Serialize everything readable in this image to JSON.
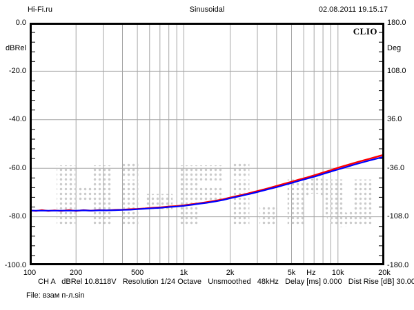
{
  "header": {
    "site": "Hi-Fi.ru",
    "title": "Sinusoidal",
    "datetime": "02.08.2011 19.15.17"
  },
  "chart_data": {
    "type": "line",
    "title": "Sinusoidal",
    "watermark": "Hi-Fi.ru",
    "logo": "CLIO",
    "grid_color": "#a6a6a6",
    "watermark_dot_color": "#cbcbcb",
    "x_axis": {
      "scale": "log",
      "min": 100,
      "max": 20000,
      "gridlines": [
        200,
        300,
        400,
        500,
        600,
        700,
        800,
        900,
        1000,
        2000,
        3000,
        4000,
        5000,
        6000,
        7000,
        8000,
        9000,
        10000
      ],
      "ticks": [
        {
          "label": "100",
          "f": 100
        },
        {
          "label": "200",
          "f": 200
        },
        {
          "label": "500",
          "f": 500
        },
        {
          "label": "1k",
          "f": 1000
        },
        {
          "label": "2k",
          "f": 2000
        },
        {
          "label": "5k",
          "f": 5000
        },
        {
          "label": "Hz",
          "f": 6700
        },
        {
          "label": "10k",
          "f": 10000
        },
        {
          "label": "20k",
          "f": 20000
        }
      ]
    },
    "y_left": {
      "unit": "dBRel",
      "min": -100,
      "max": 0,
      "major_step": 20,
      "minor_step": 4,
      "gridlines": [
        -20,
        -40,
        -60,
        -80
      ],
      "ticks": [
        {
          "label": "0.0",
          "value": 0
        },
        {
          "label": "-20.0",
          "value": -20
        },
        {
          "label": "-40.0",
          "value": -40
        },
        {
          "label": "-60.0",
          "value": -60
        },
        {
          "label": "-80.0",
          "value": -80
        },
        {
          "label": "-100.0",
          "value": -100
        }
      ]
    },
    "y_right": {
      "unit": "Deg",
      "min": -180,
      "max": 180,
      "ticks": [
        {
          "label": "180.0",
          "value": 180
        },
        {
          "label": "108.0",
          "value": 108
        },
        {
          "label": "36.0",
          "value": 36
        },
        {
          "label": "-36.0",
          "value": -36
        },
        {
          "label": "-108.0",
          "value": -108
        },
        {
          "label": "-180.0",
          "value": -180
        }
      ]
    },
    "series": [
      {
        "name": "response-red",
        "color": "#ff0000",
        "points": [
          [
            100,
            -77.4
          ],
          [
            110,
            -77.6
          ],
          [
            120,
            -77.3
          ],
          [
            132,
            -77.6
          ],
          [
            145,
            -77.4
          ],
          [
            160,
            -77.6
          ],
          [
            180,
            -77.3
          ],
          [
            200,
            -77.6
          ],
          [
            224,
            -77.3
          ],
          [
            250,
            -77.5
          ],
          [
            280,
            -77.3
          ],
          [
            315,
            -77.4
          ],
          [
            355,
            -77.2
          ],
          [
            400,
            -77.1
          ],
          [
            450,
            -76.9
          ],
          [
            500,
            -76.8
          ],
          [
            560,
            -76.6
          ],
          [
            630,
            -76.3
          ],
          [
            710,
            -76.1
          ],
          [
            800,
            -75.8
          ],
          [
            900,
            -75.6
          ],
          [
            1000,
            -75.3
          ],
          [
            1120,
            -74.9
          ],
          [
            1250,
            -74.5
          ],
          [
            1400,
            -74.0
          ],
          [
            1600,
            -73.4
          ],
          [
            1800,
            -72.8
          ],
          [
            2000,
            -72.1
          ],
          [
            2240,
            -71.4
          ],
          [
            2500,
            -70.7
          ],
          [
            2800,
            -69.9
          ],
          [
            3150,
            -69.1
          ],
          [
            3550,
            -68.2
          ],
          [
            4000,
            -67.3
          ],
          [
            4500,
            -66.4
          ],
          [
            5000,
            -65.6
          ],
          [
            5600,
            -64.7
          ],
          [
            6300,
            -63.8
          ],
          [
            7100,
            -62.8
          ],
          [
            8000,
            -61.8
          ],
          [
            9000,
            -60.8
          ],
          [
            10000,
            -59.8
          ],
          [
            11200,
            -58.9
          ],
          [
            12500,
            -58.0
          ],
          [
            14000,
            -57.1
          ],
          [
            16000,
            -56.1
          ],
          [
            18000,
            -55.2
          ],
          [
            20000,
            -54.4
          ]
        ]
      },
      {
        "name": "response-blue",
        "color": "#0000ff",
        "points": [
          [
            100,
            -77.5
          ],
          [
            110,
            -77.5
          ],
          [
            120,
            -77.5
          ],
          [
            132,
            -77.5
          ],
          [
            145,
            -77.5
          ],
          [
            160,
            -77.5
          ],
          [
            180,
            -77.5
          ],
          [
            200,
            -77.5
          ],
          [
            224,
            -77.4
          ],
          [
            250,
            -77.5
          ],
          [
            280,
            -77.4
          ],
          [
            315,
            -77.4
          ],
          [
            355,
            -77.3
          ],
          [
            400,
            -77.2
          ],
          [
            450,
            -77.1
          ],
          [
            500,
            -76.9
          ],
          [
            560,
            -76.7
          ],
          [
            630,
            -76.5
          ],
          [
            710,
            -76.3
          ],
          [
            800,
            -76.0
          ],
          [
            900,
            -75.8
          ],
          [
            1000,
            -75.5
          ],
          [
            1120,
            -75.1
          ],
          [
            1250,
            -74.7
          ],
          [
            1400,
            -74.3
          ],
          [
            1600,
            -73.7
          ],
          [
            1800,
            -73.1
          ],
          [
            2000,
            -72.4
          ],
          [
            2240,
            -71.7
          ],
          [
            2500,
            -71.0
          ],
          [
            2800,
            -70.3
          ],
          [
            3150,
            -69.5
          ],
          [
            3550,
            -68.6
          ],
          [
            4000,
            -67.8
          ],
          [
            4500,
            -66.9
          ],
          [
            5000,
            -66.1
          ],
          [
            5600,
            -65.2
          ],
          [
            6300,
            -64.3
          ],
          [
            7100,
            -63.4
          ],
          [
            8000,
            -62.4
          ],
          [
            9000,
            -61.4
          ],
          [
            10000,
            -60.5
          ],
          [
            11200,
            -59.6
          ],
          [
            12500,
            -58.7
          ],
          [
            14000,
            -57.8
          ],
          [
            16000,
            -56.8
          ],
          [
            18000,
            -56.0
          ],
          [
            20000,
            -55.2
          ]
        ]
      }
    ]
  },
  "footer": {
    "status_segments": [
      "CH A",
      "dBRel 10.8118V",
      "Resolution 1/24 Octave",
      "Unsmoothed",
      "48kHz",
      "Delay [ms] 0.000",
      "Dist Rise [dB] 30.00"
    ],
    "file": "File: взам п-л.sin"
  }
}
